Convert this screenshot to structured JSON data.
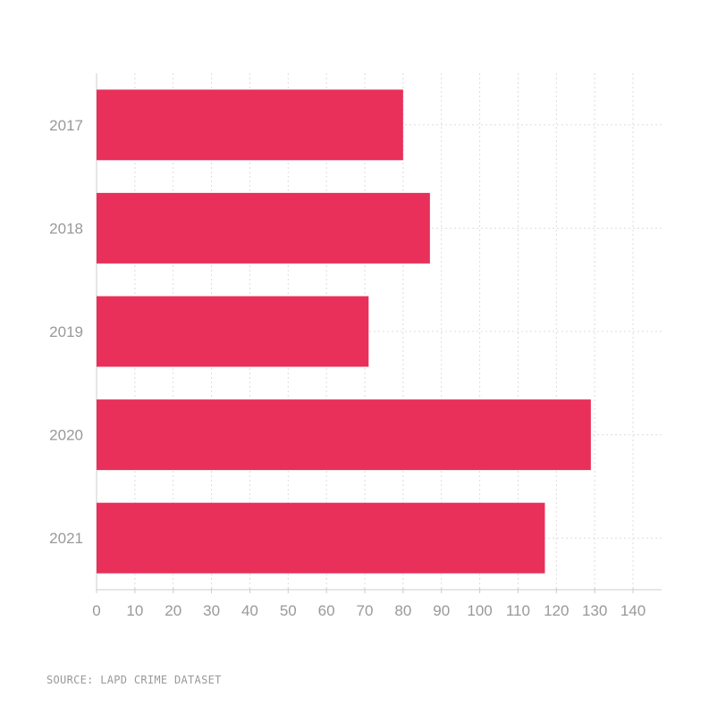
{
  "chart_data": {
    "type": "bar",
    "orientation": "horizontal",
    "categories": [
      "2017",
      "2018",
      "2019",
      "2020",
      "2021"
    ],
    "values": [
      80,
      87,
      71,
      129,
      117
    ],
    "xlim": [
      0,
      140
    ],
    "xticks": [
      "0",
      "10",
      "20",
      "30",
      "40",
      "50",
      "60",
      "70",
      "80",
      "90",
      "100",
      "110",
      "120",
      "130",
      "140"
    ],
    "grid": true,
    "grid_style": "dotted",
    "bar_color": "#E8305A",
    "title": "",
    "xlabel": "",
    "ylabel": ""
  },
  "footer": {
    "source": "SOURCE: LAPD CRIME DATASET"
  }
}
